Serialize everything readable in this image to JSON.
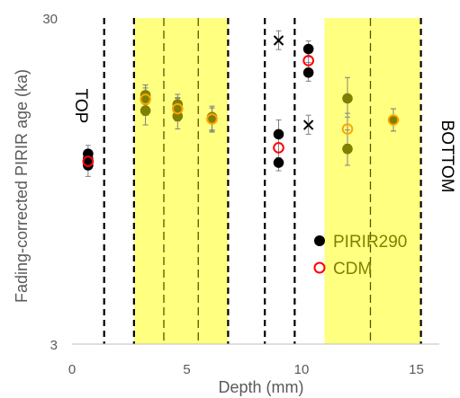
{
  "chart_data": {
    "type": "scatter",
    "xlabel": "Depth (mm)",
    "ylabel": "Fading-corrected PIRIR age (ka)",
    "xlim": [
      0,
      16
    ],
    "ylim": [
      3,
      30
    ],
    "y_scale": "log",
    "x_ticks": [
      "0",
      "5",
      "10",
      "15"
    ],
    "y_ticks": [
      "3",
      "30"
    ],
    "grid": false,
    "annotations": {
      "top": "TOP",
      "bottom": "BOTTOM"
    },
    "shaded_bands": [
      [
        2.7,
        6.8
      ],
      [
        11.0,
        15.2
      ]
    ],
    "boundary_lines_heavy": [
      1.4,
      2.7,
      6.8,
      8.4,
      9.7,
      15.2
    ],
    "boundary_lines_light": [
      4.0,
      5.5,
      13.0
    ],
    "colors": {
      "band": "#ffff80",
      "black": "#000000",
      "olive": "#7f7f00",
      "red": "#ff0000",
      "orange": "#ffa500",
      "error_bar": "#808080"
    },
    "series": [
      {
        "name": "PIRIR290",
        "marker": "filled-circle",
        "points": [
          {
            "x": 0.7,
            "y": 11.5,
            "color": "black",
            "err": [
              10.9,
              12.2
            ]
          },
          {
            "x": 0.7,
            "y": 11.1,
            "color": "black",
            "err": [
              10.4,
              11.7
            ]
          },
          {
            "x": 0.7,
            "y": 10.6,
            "color": "black",
            "err": [
              9.8,
              11.3
            ]
          },
          {
            "x": 3.2,
            "y": 17.4,
            "color": "olive",
            "err": [
              15.1,
              18.7
            ]
          },
          {
            "x": 3.2,
            "y": 16.8,
            "color": "olive",
            "err": [
              15.1,
              18.7
            ]
          },
          {
            "x": 3.2,
            "y": 15.6,
            "color": "olive",
            "err": [
              14.1,
              17.2
            ]
          },
          {
            "x": 4.6,
            "y": 16.3,
            "color": "olive",
            "err": [
              14.9,
              17.5
            ]
          },
          {
            "x": 4.6,
            "y": 15.9,
            "color": "olive",
            "err": [
              14.5,
              17.1
            ]
          },
          {
            "x": 4.6,
            "y": 15.0,
            "color": "olive",
            "err": [
              13.7,
              16.3
            ]
          },
          {
            "x": 6.1,
            "y": 14.9,
            "color": "olive",
            "err": [
              13.6,
              16.1
            ]
          },
          {
            "x": 6.1,
            "y": 14.7,
            "color": "olive",
            "err": [
              13.4,
              15.9
            ]
          },
          {
            "x": 9.0,
            "y": 13.2,
            "color": "black",
            "err": [
              12.4,
              14.6
            ]
          },
          {
            "x": 9.0,
            "y": 10.8,
            "color": "black",
            "err": [
              10.2,
              11.6
            ]
          },
          {
            "x": 10.3,
            "y": 24.1,
            "color": "black",
            "err": [
              22.8,
              25.5
            ]
          },
          {
            "x": 10.3,
            "y": 20.4,
            "color": "black",
            "err": [
              19.2,
              21.9
            ]
          },
          {
            "x": 12.0,
            "y": 17.0,
            "color": "olive",
            "err": [
              14.9,
              19.7
            ]
          },
          {
            "x": 12.0,
            "y": 11.9,
            "color": "olive",
            "err": [
              10.6,
              13.6
            ]
          },
          {
            "x": 14.0,
            "y": 14.6,
            "color": "olive",
            "err": [
              13.5,
              15.8
            ]
          }
        ]
      },
      {
        "name": "CDM",
        "marker": "open-circle",
        "points": [
          {
            "x": 0.7,
            "y": 10.9,
            "color": "red",
            "err": [
              10.3,
              11.6
            ]
          },
          {
            "x": 3.2,
            "y": 16.9,
            "color": "orange",
            "err": [
              15.4,
              18.3
            ]
          },
          {
            "x": 4.6,
            "y": 15.8,
            "color": "orange",
            "err": [
              14.5,
              17.0
            ]
          },
          {
            "x": 6.1,
            "y": 14.7,
            "color": "orange",
            "err": [
              13.5,
              15.9
            ]
          },
          {
            "x": 9.0,
            "y": 12.0,
            "color": "red",
            "err": [
              11.2,
              12.9
            ]
          },
          {
            "x": 10.3,
            "y": 22.2,
            "color": "red",
            "err": [
              21.0,
              23.5
            ]
          },
          {
            "x": 12.0,
            "y": 13.7,
            "color": "orange",
            "err": [
              12.3,
              15.3
            ]
          },
          {
            "x": 14.0,
            "y": 14.6,
            "color": "orange",
            "err": [
              13.5,
              15.8
            ]
          }
        ]
      },
      {
        "name": "",
        "marker": "cross",
        "points": [
          {
            "x": 9.0,
            "y": 25.6,
            "color": "black",
            "err": [
              24.0,
              27.4
            ]
          },
          {
            "x": 10.3,
            "y": 14.1,
            "color": "black",
            "err": [
              13.2,
              15.1
            ]
          }
        ]
      }
    ],
    "legend": [
      {
        "label": "PIRIR290",
        "marker": "filled-circle",
        "color": "black"
      },
      {
        "label": "CDM",
        "marker": "open-circle",
        "color": "red"
      }
    ]
  }
}
